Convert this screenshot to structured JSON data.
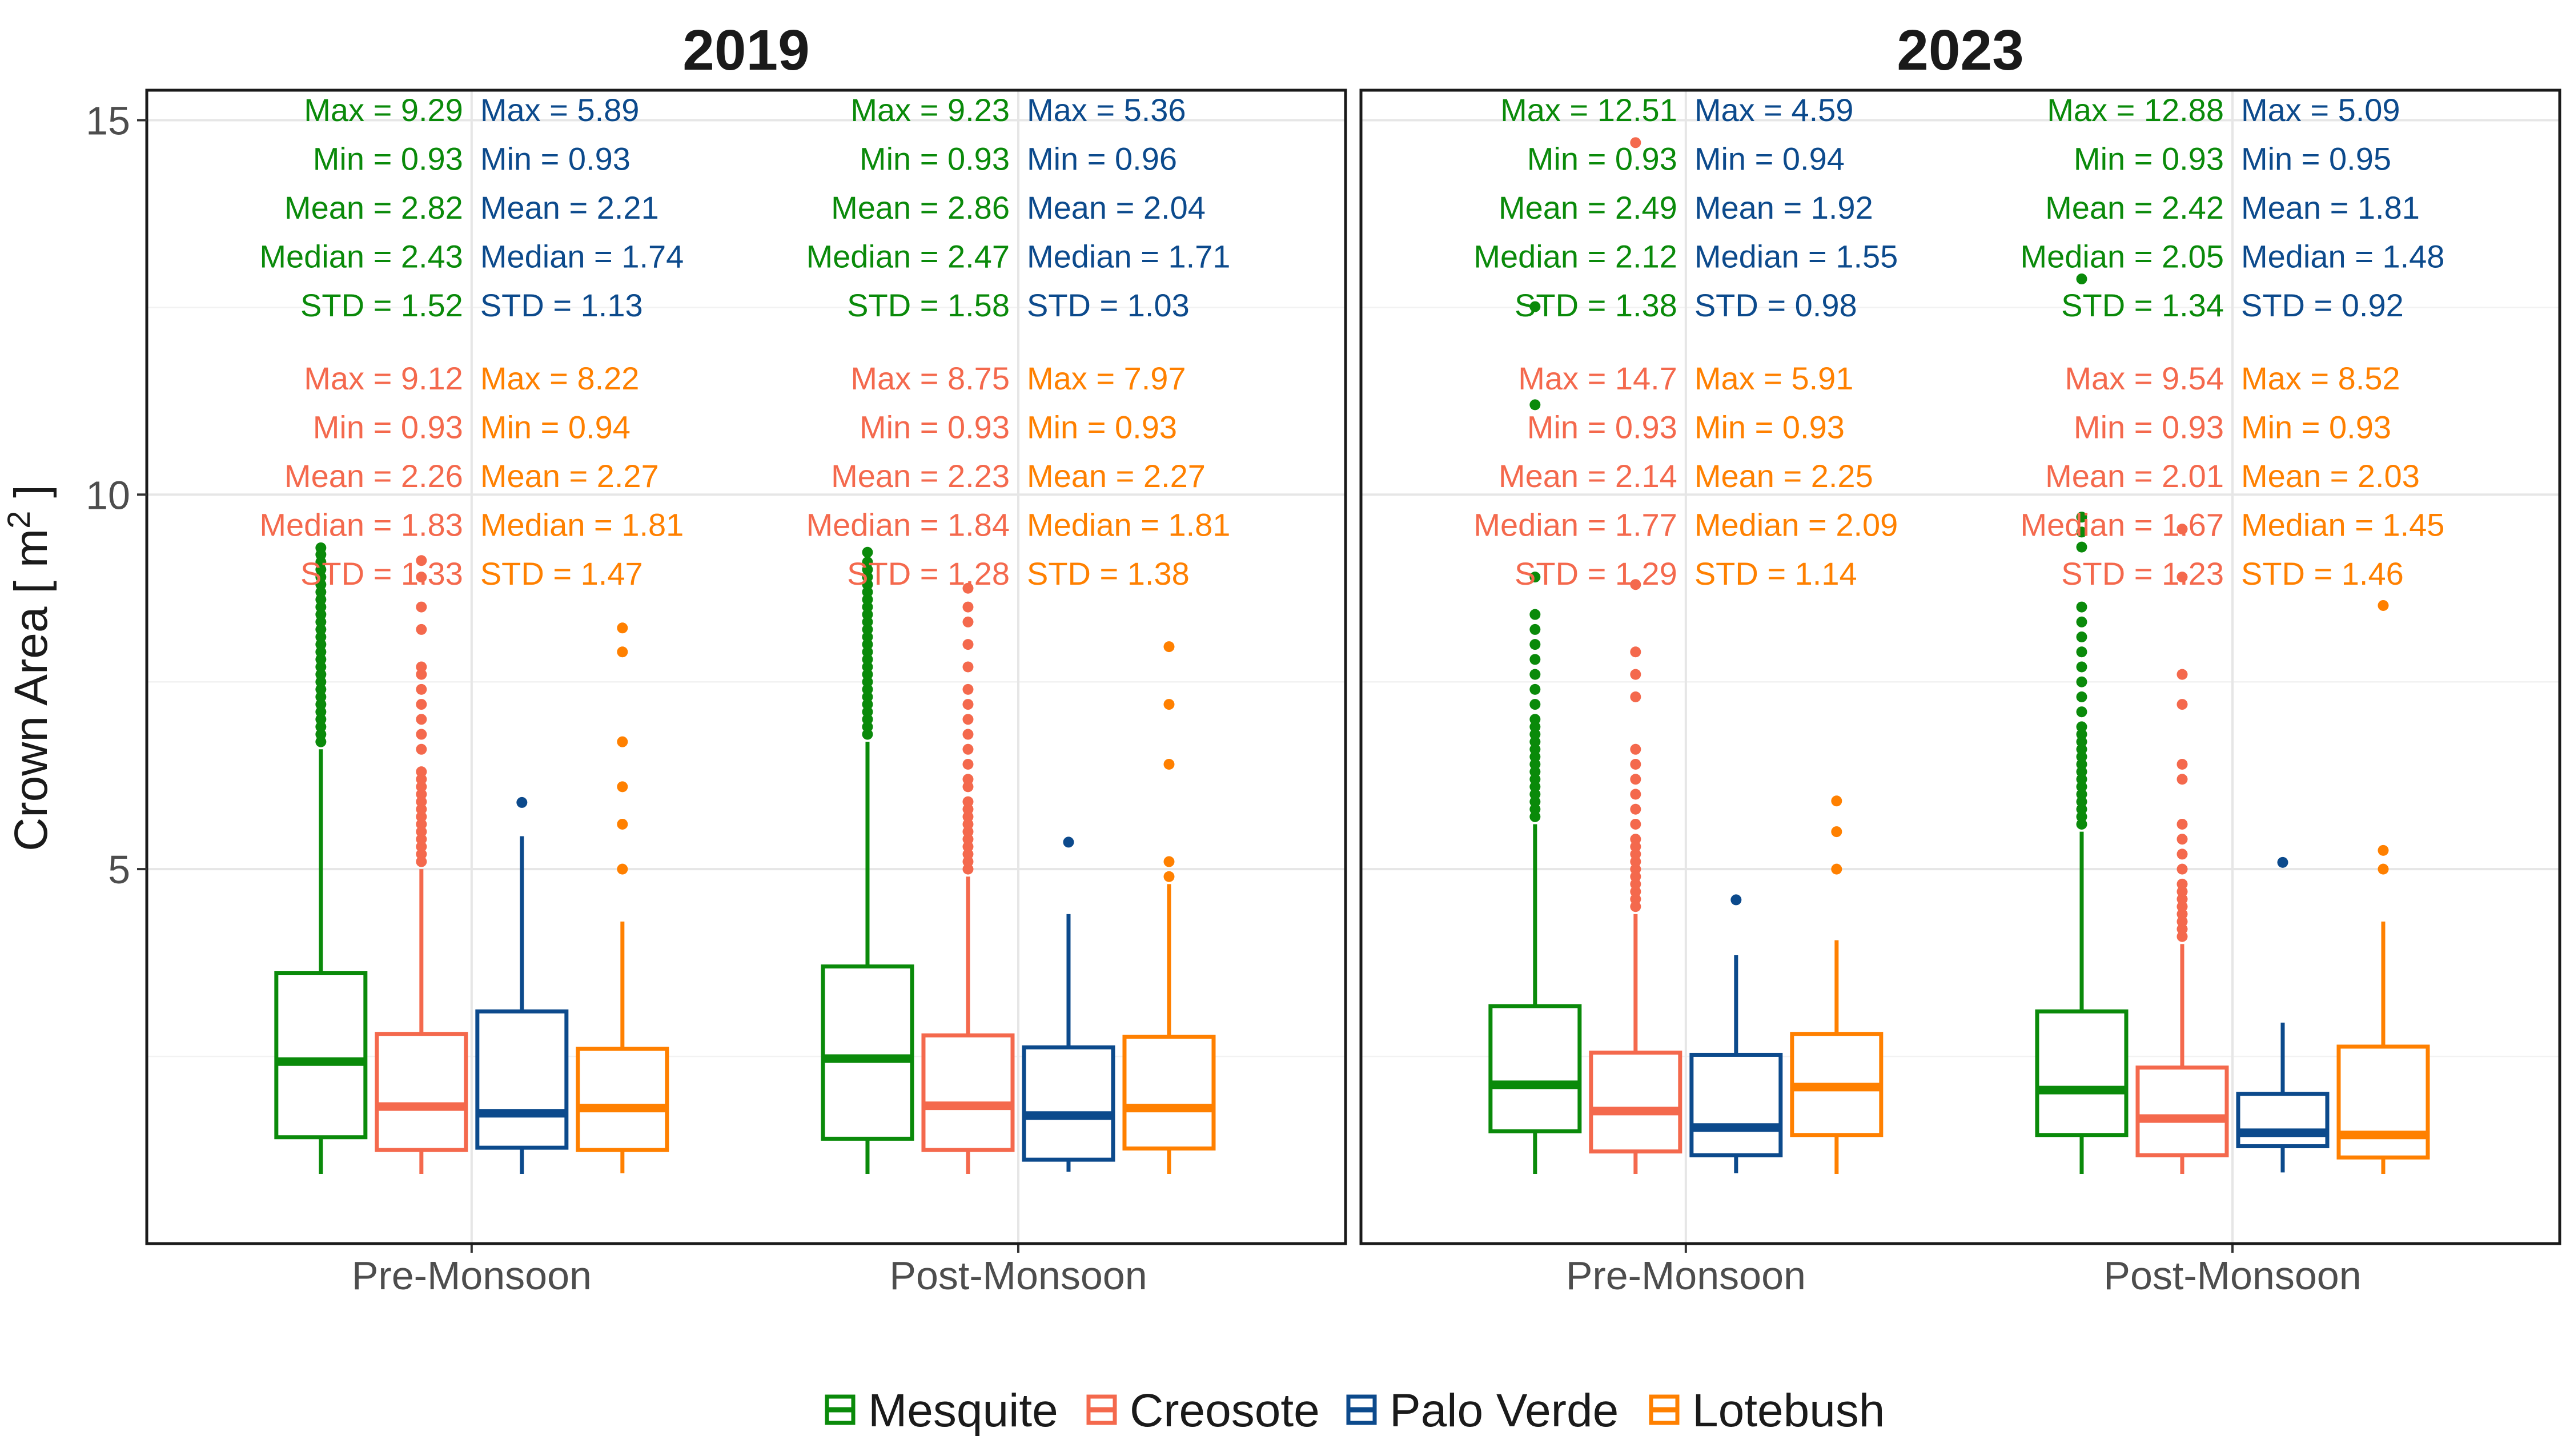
{
  "colors": {
    "Mesquite": "#0a8a0a",
    "Creosote": "#f4694d",
    "Palo Verde": "#0c4a8c",
    "Lotebush": "#ff8000"
  },
  "chart_data": {
    "type": "boxplot",
    "ylabel": "Crown Area [ m",
    "ylabel_sup": "2",
    "ylabel_end": " ]",
    "ylim": [
      0,
      15.4
    ],
    "yticks": [
      "5",
      "10",
      "15"
    ],
    "grid": true,
    "legend": {
      "position": "bottom",
      "entries": [
        "Mesquite",
        "Creosote",
        "Palo Verde",
        "Lotebush"
      ]
    },
    "panels": [
      {
        "title": "2019",
        "categories": [
          "Pre-Monsoon",
          "Post-Monsoon"
        ],
        "groups": [
          {
            "category": "Pre-Monsoon",
            "boxes": [
              {
                "species": "Mesquite",
                "min": 0.93,
                "q1": 1.42,
                "median": 2.43,
                "q3": 3.61,
                "whisker_high": 6.6,
                "max": 9.29,
                "outliers": [
                  6.7,
                  6.8,
                  6.9,
                  7.0,
                  7.1,
                  7.2,
                  7.3,
                  7.4,
                  7.5,
                  7.6,
                  7.7,
                  7.8,
                  7.9,
                  8.0,
                  8.1,
                  8.2,
                  8.3,
                  8.4,
                  8.5,
                  8.6,
                  8.7,
                  8.8,
                  8.9,
                  9.0,
                  9.1,
                  9.2,
                  9.29
                ]
              },
              {
                "species": "Creosote",
                "min": 0.93,
                "q1": 1.25,
                "median": 1.83,
                "q3": 2.8,
                "whisker_high": 5.0,
                "max": 9.12,
                "outliers": [
                  5.1,
                  5.2,
                  5.3,
                  5.4,
                  5.5,
                  5.6,
                  5.7,
                  5.8,
                  5.9,
                  6.0,
                  6.1,
                  6.2,
                  6.3,
                  6.6,
                  6.8,
                  7.0,
                  7.2,
                  7.4,
                  7.6,
                  7.7,
                  8.2,
                  8.5,
                  8.9,
                  9.12
                ]
              },
              {
                "species": "Palo Verde",
                "min": 0.93,
                "q1": 1.28,
                "median": 1.74,
                "q3": 3.1,
                "whisker_high": 5.44,
                "max": 5.89,
                "outliers": [
                  5.89
                ]
              },
              {
                "species": "Lotebush",
                "min": 0.94,
                "q1": 1.25,
                "median": 1.81,
                "q3": 2.6,
                "whisker_high": 4.3,
                "max": 8.22,
                "outliers": [
                  5.0,
                  5.6,
                  6.1,
                  6.7,
                  7.9,
                  8.22
                ]
              }
            ],
            "stats_top": [
              {
                "species": "Mesquite",
                "max": "Max = 9.29",
                "min": "Min = 0.93",
                "mean": "Mean = 2.82",
                "median": "Median = 2.43",
                "std": "STD = 1.52"
              },
              {
                "species": "Palo Verde",
                "max": "Max = 5.89",
                "min": "Min = 0.93",
                "mean": "Mean = 2.21",
                "median": "Median = 1.74",
                "std": "STD = 1.13"
              }
            ],
            "stats_bottom": [
              {
                "species": "Creosote",
                "max": "Max = 9.12",
                "min": "Min = 0.93",
                "mean": "Mean = 2.26",
                "median": "Median = 1.83",
                "std": "STD = 1.33"
              },
              {
                "species": "Lotebush",
                "max": "Max = 8.22",
                "min": "Min = 0.94",
                "mean": "Mean = 2.27",
                "median": "Median = 1.81",
                "std": "STD = 1.47"
              }
            ]
          },
          {
            "category": "Post-Monsoon",
            "boxes": [
              {
                "species": "Mesquite",
                "min": 0.93,
                "q1": 1.4,
                "median": 2.47,
                "q3": 3.7,
                "whisker_high": 6.7,
                "max": 9.23,
                "outliers": [
                  6.8,
                  6.9,
                  7.0,
                  7.1,
                  7.2,
                  7.3,
                  7.4,
                  7.5,
                  7.6,
                  7.7,
                  7.8,
                  7.9,
                  8.0,
                  8.1,
                  8.2,
                  8.3,
                  8.4,
                  8.5,
                  8.6,
                  8.7,
                  8.8,
                  8.9,
                  9.0,
                  9.1,
                  9.23
                ]
              },
              {
                "species": "Creosote",
                "min": 0.93,
                "q1": 1.25,
                "median": 1.84,
                "q3": 2.78,
                "whisker_high": 4.9,
                "max": 8.75,
                "outliers": [
                  5.0,
                  5.1,
                  5.2,
                  5.3,
                  5.4,
                  5.5,
                  5.6,
                  5.7,
                  5.8,
                  5.9,
                  6.1,
                  6.2,
                  6.4,
                  6.6,
                  6.8,
                  7.0,
                  7.2,
                  7.4,
                  7.7,
                  8.0,
                  8.3,
                  8.5,
                  8.75
                ]
              },
              {
                "species": "Palo Verde",
                "min": 0.96,
                "q1": 1.12,
                "median": 1.71,
                "q3": 2.62,
                "whisker_high": 4.4,
                "max": 5.36,
                "outliers": [
                  5.36
                ]
              },
              {
                "species": "Lotebush",
                "min": 0.93,
                "q1": 1.27,
                "median": 1.81,
                "q3": 2.76,
                "whisker_high": 4.8,
                "max": 7.97,
                "outliers": [
                  4.9,
                  5.1,
                  6.4,
                  7.2,
                  7.97
                ]
              }
            ],
            "stats_top": [
              {
                "species": "Mesquite",
                "max": "Max = 9.23",
                "min": "Min = 0.93",
                "mean": "Mean = 2.86",
                "median": "Median = 2.47",
                "std": "STD = 1.58"
              },
              {
                "species": "Palo Verde",
                "max": "Max = 5.36",
                "min": "Min = 0.96",
                "mean": "Mean = 2.04",
                "median": "Median = 1.71",
                "std": "STD = 1.03"
              }
            ],
            "stats_bottom": [
              {
                "species": "Creosote",
                "max": "Max = 8.75",
                "min": "Min = 0.93",
                "mean": "Mean = 2.23",
                "median": "Median = 1.84",
                "std": "STD = 1.28"
              },
              {
                "species": "Lotebush",
                "max": "Max = 7.97",
                "min": "Min = 0.93",
                "mean": "Mean = 2.27",
                "median": "Median = 1.81",
                "std": "STD = 1.38"
              }
            ]
          }
        ]
      },
      {
        "title": "2023",
        "categories": [
          "Pre-Monsoon",
          "Post-Monsoon"
        ],
        "groups": [
          {
            "category": "Pre-Monsoon",
            "boxes": [
              {
                "species": "Mesquite",
                "min": 0.93,
                "q1": 1.5,
                "median": 2.12,
                "q3": 3.17,
                "whisker_high": 5.6,
                "max": 12.51,
                "outliers": [
                  5.7,
                  5.8,
                  5.9,
                  6.0,
                  6.1,
                  6.2,
                  6.3,
                  6.4,
                  6.5,
                  6.6,
                  6.7,
                  6.8,
                  6.9,
                  7.0,
                  7.2,
                  7.4,
                  7.6,
                  7.8,
                  8.0,
                  8.2,
                  8.4,
                  8.9,
                  11.2,
                  12.51
                ]
              },
              {
                "species": "Creosote",
                "min": 0.93,
                "q1": 1.23,
                "median": 1.77,
                "q3": 2.55,
                "whisker_high": 4.4,
                "max": 14.7,
                "outliers": [
                  4.5,
                  4.6,
                  4.7,
                  4.8,
                  4.9,
                  5.0,
                  5.1,
                  5.2,
                  5.3,
                  5.4,
                  5.6,
                  5.8,
                  6.0,
                  6.2,
                  6.4,
                  6.6,
                  7.3,
                  7.6,
                  7.9,
                  8.8,
                  14.7
                ]
              },
              {
                "species": "Palo Verde",
                "min": 0.94,
                "q1": 1.18,
                "median": 1.55,
                "q3": 2.52,
                "whisker_high": 3.85,
                "max": 4.59,
                "outliers": [
                  4.59
                ]
              },
              {
                "species": "Lotebush",
                "min": 0.93,
                "q1": 1.45,
                "median": 2.09,
                "q3": 2.8,
                "whisker_high": 4.05,
                "max": 5.91,
                "outliers": [
                  5.0,
                  5.5,
                  5.91
                ]
              }
            ],
            "stats_top": [
              {
                "species": "Mesquite",
                "max": "Max = 12.51",
                "min": "Min = 0.93",
                "mean": "Mean = 2.49",
                "median": "Median = 2.12",
                "std": "STD = 1.38"
              },
              {
                "species": "Palo Verde",
                "max": "Max = 4.59",
                "min": "Min = 0.94",
                "mean": "Mean = 1.92",
                "median": "Median = 1.55",
                "std": "STD = 0.98"
              }
            ],
            "stats_bottom": [
              {
                "species": "Creosote",
                "max": "Max = 14.7",
                "min": "Min = 0.93",
                "mean": "Mean = 2.14",
                "median": "Median = 1.77",
                "std": "STD = 1.29"
              },
              {
                "species": "Lotebush",
                "max": "Max = 5.91",
                "min": "Min = 0.93",
                "mean": "Mean = 2.25",
                "median": "Median = 2.09",
                "std": "STD = 1.14"
              }
            ]
          },
          {
            "category": "Post-Monsoon",
            "boxes": [
              {
                "species": "Mesquite",
                "min": 0.93,
                "q1": 1.45,
                "median": 2.05,
                "q3": 3.1,
                "whisker_high": 5.5,
                "max": 12.88,
                "outliers": [
                  5.6,
                  5.7,
                  5.8,
                  5.9,
                  6.0,
                  6.1,
                  6.2,
                  6.3,
                  6.4,
                  6.5,
                  6.6,
                  6.7,
                  6.8,
                  6.9,
                  7.1,
                  7.3,
                  7.5,
                  7.7,
                  7.9,
                  8.1,
                  8.3,
                  8.5,
                  9.3,
                  9.5,
                  9.7,
                  12.88
                ]
              },
              {
                "species": "Creosote",
                "min": 0.93,
                "q1": 1.18,
                "median": 1.67,
                "q3": 2.35,
                "whisker_high": 4.0,
                "max": 9.54,
                "outliers": [
                  4.1,
                  4.2,
                  4.3,
                  4.4,
                  4.5,
                  4.6,
                  4.7,
                  4.8,
                  5.0,
                  5.2,
                  5.4,
                  5.6,
                  6.2,
                  6.4,
                  7.2,
                  7.6,
                  8.9,
                  9.54
                ]
              },
              {
                "species": "Palo Verde",
                "min": 0.95,
                "q1": 1.3,
                "median": 1.48,
                "q3": 2.0,
                "whisker_high": 2.95,
                "max": 5.09,
                "outliers": [
                  5.09
                ]
              },
              {
                "species": "Lotebush",
                "min": 0.93,
                "q1": 1.15,
                "median": 1.45,
                "q3": 2.63,
                "whisker_high": 4.3,
                "max": 8.52,
                "outliers": [
                  5.0,
                  5.25,
                  8.52
                ]
              }
            ],
            "stats_top": [
              {
                "species": "Mesquite",
                "max": "Max = 12.88",
                "min": "Min = 0.93",
                "mean": "Mean = 2.42",
                "median": "Median = 2.05",
                "std": "STD = 1.34"
              },
              {
                "species": "Palo Verde",
                "max": "Max = 5.09",
                "min": "Min = 0.95",
                "mean": "Mean = 1.81",
                "median": "Median = 1.48",
                "std": "STD = 0.92"
              }
            ],
            "stats_bottom": [
              {
                "species": "Creosote",
                "max": "Max = 9.54",
                "min": "Min = 0.93",
                "mean": "Mean = 2.01",
                "median": "Median = 1.67",
                "std": "STD = 1.23"
              },
              {
                "species": "Lotebush",
                "max": "Max = 8.52",
                "min": "Min = 0.93",
                "mean": "Mean = 2.03",
                "median": "Median = 1.45",
                "std": "STD = 1.46"
              }
            ]
          }
        ]
      }
    ]
  }
}
